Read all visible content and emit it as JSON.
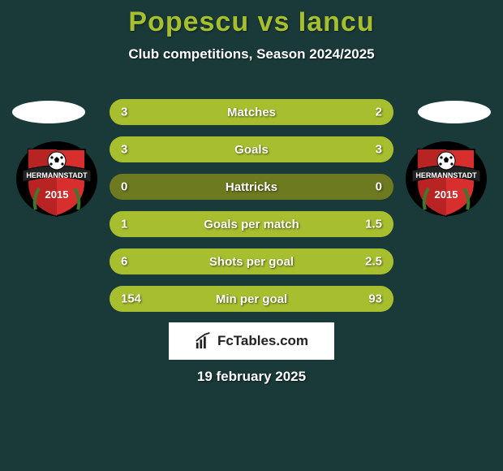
{
  "background_color": "#1a3a3a",
  "title": {
    "text": "Popescu vs Iancu",
    "color": "#a7bf2e",
    "fontsize": 34
  },
  "subtitle": "Club competitions, Season 2024/2025",
  "stats_colors": {
    "track": "#6d7a1f",
    "fill": "#a7bf2e",
    "text": "#ffffff"
  },
  "stats": [
    {
      "label": "Matches",
      "left_val": "3",
      "right_val": "2",
      "left_pct": 60,
      "right_pct": 40
    },
    {
      "label": "Goals",
      "left_val": "3",
      "right_val": "3",
      "left_pct": 50,
      "right_pct": 50
    },
    {
      "label": "Hattricks",
      "left_val": "0",
      "right_val": "0",
      "left_pct": 0,
      "right_pct": 0
    },
    {
      "label": "Goals per match",
      "left_val": "1",
      "right_val": "1.5",
      "left_pct": 40,
      "right_pct": 60
    },
    {
      "label": "Shots per goal",
      "left_val": "6",
      "right_val": "2.5",
      "left_pct": 71,
      "right_pct": 29
    },
    {
      "label": "Min per goal",
      "left_val": "154",
      "right_val": "93",
      "left_pct": 62,
      "right_pct": 38
    }
  ],
  "club_badge": {
    "shield_fill": "#d82e2e",
    "border": "#000000",
    "banner_fill": "#222222",
    "banner_text": "HERMANNSTADT",
    "year": "2015",
    "ball_fill": "#ffffff"
  },
  "logo_text": "FcTables.com",
  "date": "19 february 2025"
}
